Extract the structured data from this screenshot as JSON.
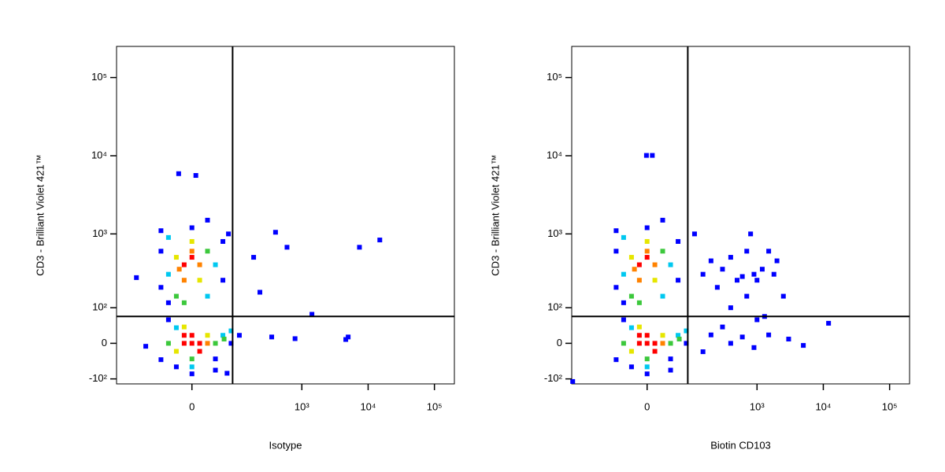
{
  "chart_data": [
    {
      "type": "scatter",
      "xscale": "biexponential",
      "yscale": "biexponential",
      "xlabel": "Isotype",
      "ylabel": "CD3 - Brilliant Violet 421™",
      "xlim": [
        -300,
        200000
      ],
      "ylim": [
        -120,
        250000
      ],
      "xticks": [
        0,
        {
          "value": 1000,
          "label": "10³"
        },
        {
          "value": 10000,
          "label": "10⁴"
        },
        {
          "value": 100000,
          "label": "10⁵"
        }
      ],
      "yticks": [
        {
          "value": -100,
          "label": "-10²"
        },
        0,
        {
          "value": 100,
          "label": "10²"
        },
        {
          "value": 1000,
          "label": "10³"
        },
        {
          "value": 10000,
          "label": "10⁴"
        },
        {
          "value": 100000,
          "label": "10⁵"
        }
      ],
      "quadrant_x": 85,
      "quadrant_y": 70,
      "series": [
        {
          "color": "#0000ff",
          "x": [
            0,
            40,
            -57,
            80,
            110,
            -40,
            0,
            -57,
            57,
            -40,
            57,
            25,
            -57,
            72,
            400,
            597,
            7400,
            15000,
            -21,
            6,
            185,
            231,
            1420,
            4600,
            5000,
            790,
            350,
            -148,
            -105,
            68,
            -25,
            -57,
            40
          ],
          "y": [
            -82,
            -38,
            -40,
            0,
            19,
            60,
            1200,
            600,
            800,
            120,
            250,
            1500,
            1100,
            1000,
            1050,
            674,
            674,
            836,
            5900,
            5600,
            500,
            171,
            77,
            9,
            15,
            11,
            15,
            271,
            -7,
            -80,
            -60,
            200,
            -70
          ]
        },
        {
          "color": "#00c8f0",
          "x": [
            -25,
            57,
            0,
            -40,
            25,
            40,
            -40,
            80
          ],
          "y": [
            38,
            19,
            -60,
            900,
            150,
            400,
            300,
            30
          ]
        },
        {
          "color": "#3cc83c",
          "x": [
            0,
            40,
            -40,
            -25,
            25,
            -12,
            60
          ],
          "y": [
            -38,
            0,
            0,
            150,
            600,
            120,
            10
          ]
        },
        {
          "color": "#e6e600",
          "x": [
            -25,
            25,
            0,
            -25,
            12,
            -12
          ],
          "y": [
            -19,
            19,
            800,
            500,
            250,
            40
          ]
        },
        {
          "color": "#ff8200",
          "x": [
            25,
            0,
            -12,
            12,
            -20
          ],
          "y": [
            0,
            600,
            250,
            400,
            350
          ]
        },
        {
          "color": "#ff0000",
          "x": [
            0,
            12,
            -12,
            0,
            12,
            -12,
            -12,
            0
          ],
          "y": [
            0,
            0,
            0,
            19,
            -19,
            19,
            400,
            500
          ]
        }
      ]
    },
    {
      "type": "scatter",
      "xscale": "biexponential",
      "yscale": "biexponential",
      "xlabel": "Biotin CD103",
      "ylabel": "CD3 - Brilliant Violet 421™",
      "xlim": [
        -300,
        200000
      ],
      "ylim": [
        -120,
        250000
      ],
      "xticks": [
        0,
        {
          "value": 1000,
          "label": "10³"
        },
        {
          "value": 10000,
          "label": "10⁴"
        },
        {
          "value": 100000,
          "label": "10⁵"
        }
      ],
      "yticks": [
        {
          "value": -100,
          "label": "-10²"
        },
        0,
        {
          "value": 100,
          "label": "10²"
        },
        {
          "value": 1000,
          "label": "10³"
        },
        {
          "value": 10000,
          "label": "10⁴"
        },
        {
          "value": 100000,
          "label": "10⁵"
        }
      ],
      "quadrant_x": 85,
      "quadrant_y": 70,
      "series": [
        {
          "color": "#0000ff",
          "x": [
            0,
            40,
            -57,
            80,
            -40,
            0,
            -57,
            57,
            -40,
            57,
            25,
            -57,
            -25,
            -57,
            40,
            -1,
            8,
            -290,
            110,
            150,
            200,
            250,
            300,
            400,
            500,
            600,
            700,
            800,
            900,
            1000,
            1200,
            1500,
            1800,
            2000,
            2500,
            400,
            700,
            1000,
            1300,
            200,
            400,
            600,
            900,
            1500,
            3000,
            5000,
            12000,
            300,
            150
          ],
          "y": [
            -82,
            -38,
            -40,
            0,
            60,
            1200,
            600,
            800,
            120,
            250,
            1500,
            1100,
            -60,
            200,
            -70,
            10100,
            10100,
            -110,
            1000,
            300,
            450,
            200,
            350,
            500,
            250,
            280,
            600,
            1000,
            300,
            250,
            350,
            600,
            300,
            450,
            150,
            100,
            150,
            60,
            70,
            20,
            0,
            15,
            -10,
            20,
            10,
            -5,
            50,
            40,
            -20
          ]
        },
        {
          "color": "#00c8f0",
          "x": [
            -25,
            57,
            0,
            -40,
            25,
            40,
            -40,
            80
          ],
          "y": [
            38,
            19,
            -60,
            900,
            150,
            400,
            300,
            30
          ]
        },
        {
          "color": "#3cc83c",
          "x": [
            0,
            40,
            -40,
            -25,
            25,
            -12,
            60
          ],
          "y": [
            -38,
            0,
            0,
            150,
            600,
            120,
            10
          ]
        },
        {
          "color": "#e6e600",
          "x": [
            -25,
            25,
            0,
            -25,
            12,
            -12
          ],
          "y": [
            -19,
            19,
            800,
            500,
            250,
            40
          ]
        },
        {
          "color": "#ff8200",
          "x": [
            25,
            0,
            -12,
            12,
            -20
          ],
          "y": [
            0,
            600,
            250,
            400,
            350
          ]
        },
        {
          "color": "#ff0000",
          "x": [
            0,
            12,
            -12,
            0,
            12,
            -12,
            -12,
            0
          ],
          "y": [
            0,
            0,
            0,
            19,
            -19,
            19,
            400,
            500
          ]
        }
      ]
    }
  ]
}
